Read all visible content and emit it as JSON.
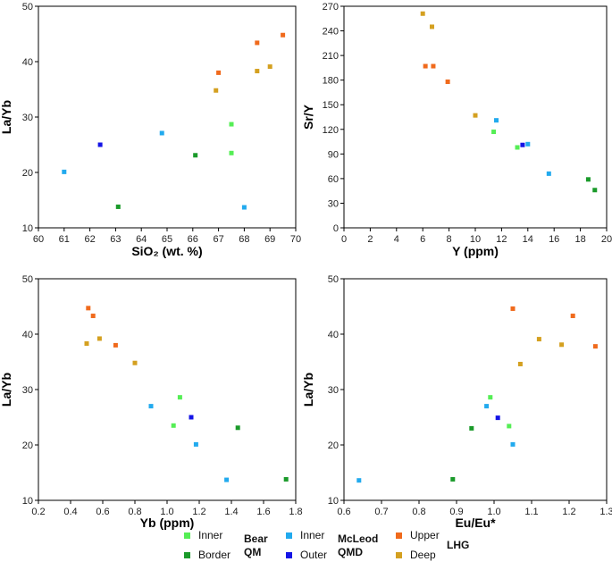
{
  "colors": {
    "bear_inner": "#55ee55",
    "bear_border": "#1a9a2a",
    "mcleod_inner": "#22aaee",
    "mcleod_outer": "#1414e6",
    "lhg_upper": "#f06a1c",
    "lhg_deep": "#d4a020"
  },
  "legend": {
    "bear": {
      "name_line1": "Bear",
      "name_line2": "QM",
      "items": [
        {
          "label": "Inner",
          "color_key": "bear_inner"
        },
        {
          "label": "Border",
          "color_key": "bear_border"
        }
      ]
    },
    "mcleod": {
      "name_line1": "McLeod",
      "name_line2": "QMD",
      "items": [
        {
          "label": "Inner",
          "color_key": "mcleod_inner"
        },
        {
          "label": "Outer",
          "color_key": "mcleod_outer"
        }
      ]
    },
    "lhg": {
      "name": "LHG",
      "items": [
        {
          "label": "Upper",
          "color_key": "lhg_upper"
        },
        {
          "label": "Deep",
          "color_key": "lhg_deep"
        }
      ]
    }
  },
  "chart_data": [
    {
      "type": "scatter",
      "xlabel": "SiO₂ (wt. %)",
      "ylabel": "La/Yb",
      "xlim": [
        60,
        70
      ],
      "ylim": [
        10,
        50
      ],
      "xticks": [
        "60",
        "61",
        "62",
        "63",
        "64",
        "65",
        "66",
        "67",
        "68",
        "69",
        "70"
      ],
      "yticks": [
        "10",
        "20",
        "30",
        "40",
        "50"
      ],
      "series": [
        {
          "name": "Bear QM Inner",
          "color_key": "bear_inner",
          "points": [
            [
              67.5,
              28.7
            ],
            [
              67.5,
              23.5
            ]
          ]
        },
        {
          "name": "Bear QM Border",
          "color_key": "bear_border",
          "points": [
            [
              63.1,
              13.8
            ],
            [
              66.1,
              23.1
            ]
          ]
        },
        {
          "name": "McLeod QMD Inner",
          "color_key": "mcleod_inner",
          "points": [
            [
              61.0,
              20.1
            ],
            [
              64.8,
              27.1
            ],
            [
              68.0,
              13.7
            ]
          ]
        },
        {
          "name": "McLeod QMD Outer",
          "color_key": "mcleod_outer",
          "points": [
            [
              62.4,
              25.0
            ]
          ]
        },
        {
          "name": "LHG Upper",
          "color_key": "lhg_upper",
          "points": [
            [
              67.0,
              38.0
            ],
            [
              68.5,
              43.4
            ],
            [
              69.5,
              44.8
            ]
          ]
        },
        {
          "name": "LHG Deep",
          "color_key": "lhg_deep",
          "points": [
            [
              66.9,
              34.8
            ],
            [
              68.5,
              38.3
            ],
            [
              69.0,
              39.1
            ]
          ]
        }
      ]
    },
    {
      "type": "scatter",
      "xlabel": "Y (ppm)",
      "ylabel": "Sr/Y",
      "xlim": [
        0,
        20
      ],
      "ylim": [
        0,
        270
      ],
      "xticks": [
        "0",
        "2",
        "4",
        "6",
        "8",
        "10",
        "12",
        "14",
        "16",
        "18",
        "20"
      ],
      "yticks": [
        "0",
        "30",
        "60",
        "90",
        "120",
        "150",
        "180",
        "210",
        "240",
        "270"
      ],
      "series": [
        {
          "name": "Bear QM Inner",
          "color_key": "bear_inner",
          "points": [
            [
              11.4,
              117
            ],
            [
              13.2,
              98
            ]
          ]
        },
        {
          "name": "Bear QM Border",
          "color_key": "bear_border",
          "points": [
            [
              18.6,
              59
            ],
            [
              19.1,
              46
            ]
          ]
        },
        {
          "name": "McLeod QMD Inner",
          "color_key": "mcleod_inner",
          "points": [
            [
              11.6,
              131
            ],
            [
              14.0,
              102
            ],
            [
              15.6,
              66
            ]
          ]
        },
        {
          "name": "McLeod QMD Outer",
          "color_key": "mcleod_outer",
          "points": [
            [
              13.6,
              101
            ]
          ]
        },
        {
          "name": "LHG Upper",
          "color_key": "lhg_upper",
          "points": [
            [
              6.2,
              197
            ],
            [
              6.8,
              197
            ],
            [
              7.9,
              178
            ]
          ]
        },
        {
          "name": "LHG Deep",
          "color_key": "lhg_deep",
          "points": [
            [
              6.0,
              261
            ],
            [
              6.7,
              245
            ],
            [
              10.0,
              137
            ]
          ]
        }
      ]
    },
    {
      "type": "scatter",
      "xlabel": "Yb (ppm)",
      "ylabel": "La/Yb",
      "xlim": [
        0.2,
        1.8
      ],
      "ylim": [
        10,
        50
      ],
      "xticks": [
        "0.2",
        "0.4",
        "0.6",
        "0.8",
        "1.0",
        "1.2",
        "1.4",
        "1.6",
        "1.8"
      ],
      "yticks": [
        "10",
        "20",
        "30",
        "40",
        "50"
      ],
      "series": [
        {
          "name": "Bear QM Inner",
          "color_key": "bear_inner",
          "points": [
            [
              1.08,
              28.6
            ],
            [
              1.04,
              23.5
            ]
          ]
        },
        {
          "name": "Bear QM Border",
          "color_key": "bear_border",
          "points": [
            [
              1.44,
              23.1
            ],
            [
              1.74,
              13.8
            ]
          ]
        },
        {
          "name": "McLeod QMD Inner",
          "color_key": "mcleod_inner",
          "points": [
            [
              0.9,
              27.0
            ],
            [
              1.18,
              20.1
            ],
            [
              1.37,
              13.7
            ]
          ]
        },
        {
          "name": "McLeod QMD Outer",
          "color_key": "mcleod_outer",
          "points": [
            [
              1.15,
              25.0
            ]
          ]
        },
        {
          "name": "LHG Upper",
          "color_key": "lhg_upper",
          "points": [
            [
              0.51,
              44.7
            ],
            [
              0.54,
              43.3
            ],
            [
              0.68,
              38.0
            ]
          ]
        },
        {
          "name": "LHG Deep",
          "color_key": "lhg_deep",
          "points": [
            [
              0.5,
              38.3
            ],
            [
              0.58,
              39.2
            ],
            [
              0.8,
              34.8
            ]
          ]
        }
      ]
    },
    {
      "type": "scatter",
      "xlabel": "Eu/Eu*",
      "ylabel": "La/Yb",
      "xlim": [
        0.6,
        1.3
      ],
      "ylim": [
        10,
        50
      ],
      "xticks": [
        "0.6",
        "0.7",
        "0.8",
        "0.9",
        "1.0",
        "1.1",
        "1.2",
        "1.3"
      ],
      "yticks": [
        "10",
        "20",
        "30",
        "40",
        "50"
      ],
      "series": [
        {
          "name": "Bear QM Inner",
          "color_key": "bear_inner",
          "points": [
            [
              0.99,
              28.6
            ],
            [
              1.04,
              23.4
            ]
          ]
        },
        {
          "name": "Bear QM Border",
          "color_key": "bear_border",
          "points": [
            [
              0.94,
              23.0
            ],
            [
              0.89,
              13.8
            ]
          ]
        },
        {
          "name": "McLeod QMD Inner",
          "color_key": "mcleod_inner",
          "points": [
            [
              0.64,
              13.6
            ],
            [
              0.98,
              27.0
            ],
            [
              1.05,
              20.1
            ]
          ]
        },
        {
          "name": "McLeod QMD Outer",
          "color_key": "mcleod_outer",
          "points": [
            [
              1.01,
              24.9
            ]
          ]
        },
        {
          "name": "LHG Upper",
          "color_key": "lhg_upper",
          "points": [
            [
              1.05,
              44.6
            ],
            [
              1.21,
              43.3
            ],
            [
              1.27,
              37.8
            ]
          ]
        },
        {
          "name": "LHG Deep",
          "color_key": "lhg_deep",
          "points": [
            [
              1.07,
              34.6
            ],
            [
              1.12,
              39.1
            ],
            [
              1.18,
              38.1
            ]
          ]
        }
      ]
    }
  ]
}
